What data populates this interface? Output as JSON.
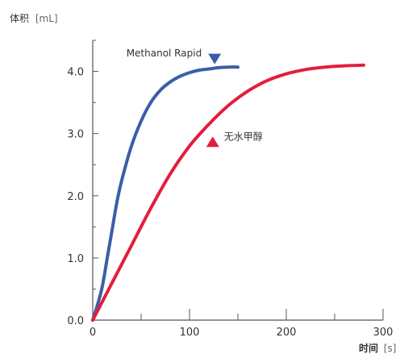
{
  "chart_data": {
    "type": "line",
    "ylabel_main": "体积",
    "ylabel_unit": "[mL]",
    "xlabel_main": "时间",
    "xlabel_unit": "[s]",
    "xlim": [
      0,
      300
    ],
    "ylim": [
      0,
      4.5
    ],
    "x_ticks": [
      0,
      100,
      200,
      300
    ],
    "x_tick_labels": [
      "0",
      "100",
      "200",
      "300"
    ],
    "y_ticks": [
      0,
      1,
      2,
      3,
      4
    ],
    "y_tick_labels": [
      "0.0",
      "1.0",
      "2.0",
      "3.0",
      "4.0"
    ],
    "grid": false,
    "series": [
      {
        "name": "Methanol Rapid",
        "color": "#3a5ea8",
        "marker_color": "#3a5ea8",
        "marker_shape": "triangle-down",
        "marker_point": [
          126,
          4.2
        ],
        "x": [
          0,
          5,
          10,
          15,
          20,
          25,
          30,
          40,
          50,
          60,
          70,
          80,
          90,
          100,
          110,
          120,
          130,
          140,
          150
        ],
        "y": [
          0.0,
          0.25,
          0.55,
          1.0,
          1.45,
          1.9,
          2.25,
          2.8,
          3.2,
          3.5,
          3.7,
          3.83,
          3.92,
          3.98,
          4.02,
          4.04,
          4.06,
          4.07,
          4.07
        ]
      },
      {
        "name": "无水甲醇",
        "color": "#e31e3c",
        "marker_color": "#e31e3c",
        "marker_shape": "triangle-up",
        "marker_point": [
          124,
          2.87
        ],
        "x": [
          0,
          20,
          40,
          60,
          80,
          100,
          120,
          140,
          160,
          180,
          200,
          220,
          240,
          260,
          280
        ],
        "y": [
          0.0,
          0.6,
          1.2,
          1.8,
          2.35,
          2.8,
          3.15,
          3.45,
          3.68,
          3.85,
          3.96,
          4.03,
          4.07,
          4.09,
          4.1
        ]
      }
    ]
  }
}
